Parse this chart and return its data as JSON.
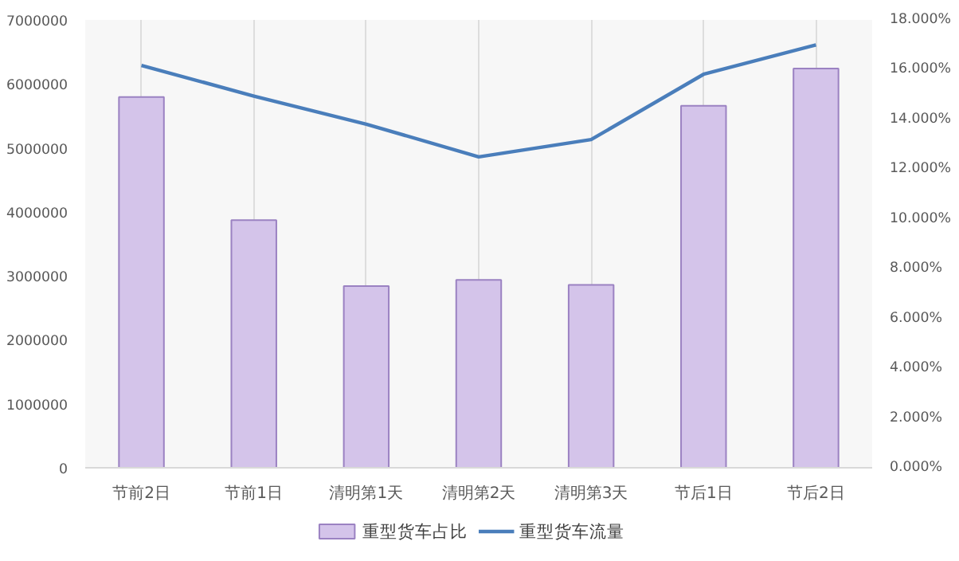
{
  "chart_data": {
    "type": "bar",
    "categories": [
      "节前2日",
      "节前1日",
      "清明第1天",
      "清明第2天",
      "清明第3天",
      "节后1日",
      "节后2日"
    ],
    "series": [
      {
        "name": "重型货车占比",
        "axis": "y2",
        "color": "#d4c4ea",
        "values": [
          14.9,
          9.95,
          7.3,
          7.55,
          7.35,
          14.55,
          16.05
        ]
      },
      {
        "name": "重型货车流量",
        "type": "line",
        "axis": "y",
        "color": "#4a7ebb",
        "values": [
          6290000,
          5810000,
          5370000,
          4860000,
          5130000,
          6150000,
          6610000
        ]
      }
    ],
    "ylim": [
      0,
      7000000
    ],
    "yticks": [
      0,
      1000000,
      2000000,
      3000000,
      4000000,
      5000000,
      6000000,
      7000000
    ],
    "y2lim": [
      0,
      18
    ],
    "y2ticks": [
      {
        "value": 0,
        "label": "0.000%"
      },
      {
        "value": 2,
        "label": "2.000%"
      },
      {
        "value": 4,
        "label": "4.000%"
      },
      {
        "value": 6,
        "label": "6.000%"
      },
      {
        "value": 8,
        "label": "8.000%"
      },
      {
        "value": 10,
        "label": "10.000%"
      },
      {
        "value": 12,
        "label": "12.000%"
      },
      {
        "value": 14,
        "label": "14.000%"
      },
      {
        "value": 16,
        "label": "16.000%"
      },
      {
        "value": 18,
        "label": "18.000%"
      }
    ],
    "grid": "x",
    "legend": "bottom",
    "marker": "none",
    "line_style": "solid"
  }
}
